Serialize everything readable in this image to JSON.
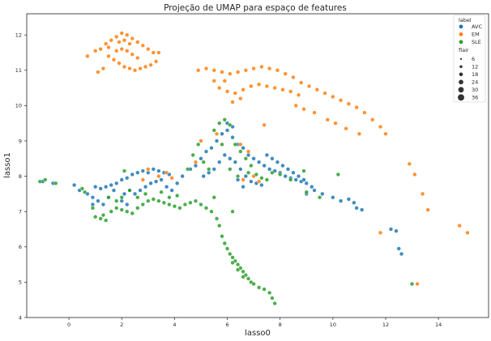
{
  "chart_data": {
    "type": "scatter",
    "title": "Projeção de UMAP para espaço de features",
    "xlabel": "lasso0",
    "ylabel": "lasso1",
    "xlim": [
      -1.6,
      15.9
    ],
    "ylim": [
      4.0,
      12.6
    ],
    "xticks": [
      "0",
      "2",
      "4",
      "6",
      "8",
      "10",
      "12",
      "14"
    ],
    "yticks": [
      "4",
      "5",
      "6",
      "7",
      "8",
      "9",
      "10",
      "11",
      "12"
    ],
    "grid": false,
    "legend_position": "top-right",
    "legend": {
      "hue_title": "label",
      "size_title": "flair",
      "size_values": [
        "6",
        "12",
        "18",
        "24",
        "30",
        "36"
      ]
    },
    "series": [
      {
        "name": "AVC",
        "color": "#1f77b4",
        "points": [
          [
            -1.0,
            7.85
          ],
          [
            -0.6,
            7.8
          ],
          [
            0.2,
            7.75
          ],
          [
            0.4,
            7.6
          ],
          [
            0.7,
            7.5
          ],
          [
            0.9,
            7.4
          ],
          [
            1.0,
            7.7
          ],
          [
            1.2,
            7.65
          ],
          [
            1.4,
            7.7
          ],
          [
            1.1,
            7.3
          ],
          [
            1.3,
            7.2
          ],
          [
            1.5,
            7.4
          ],
          [
            1.6,
            7.75
          ],
          [
            1.8,
            7.8
          ],
          [
            2.0,
            7.9
          ],
          [
            2.2,
            7.95
          ],
          [
            2.4,
            8.05
          ],
          [
            2.6,
            8.1
          ],
          [
            2.8,
            8.15
          ],
          [
            3.0,
            8.1
          ],
          [
            3.2,
            8.2
          ],
          [
            3.4,
            8.15
          ],
          [
            3.6,
            8.1
          ],
          [
            3.8,
            8.05
          ],
          [
            2.3,
            7.6
          ],
          [
            2.5,
            7.5
          ],
          [
            2.7,
            7.6
          ],
          [
            2.9,
            7.7
          ],
          [
            3.1,
            7.8
          ],
          [
            3.3,
            7.85
          ],
          [
            3.5,
            7.9
          ],
          [
            3.7,
            7.7
          ],
          [
            2.1,
            7.5
          ],
          [
            2.0,
            7.3
          ],
          [
            2.2,
            7.2
          ],
          [
            3.9,
            7.6
          ],
          [
            4.1,
            7.8
          ],
          [
            4.3,
            8.0
          ],
          [
            4.6,
            8.2
          ],
          [
            4.8,
            8.3
          ],
          [
            5.0,
            8.5
          ],
          [
            5.2,
            8.7
          ],
          [
            5.4,
            8.8
          ],
          [
            5.6,
            9.0
          ],
          [
            5.8,
            9.2
          ],
          [
            6.0,
            9.3
          ],
          [
            6.2,
            9.1
          ],
          [
            6.4,
            8.9
          ],
          [
            6.6,
            8.8
          ],
          [
            6.8,
            8.6
          ],
          [
            7.0,
            8.5
          ],
          [
            7.2,
            8.4
          ],
          [
            7.4,
            8.3
          ],
          [
            7.6,
            8.2
          ],
          [
            7.8,
            8.15
          ],
          [
            8.0,
            8.1
          ],
          [
            8.2,
            8.0
          ],
          [
            8.4,
            7.95
          ],
          [
            8.6,
            7.9
          ],
          [
            8.8,
            7.85
          ],
          [
            9.0,
            7.8
          ],
          [
            9.2,
            7.7
          ],
          [
            5.9,
            8.6
          ],
          [
            6.1,
            8.5
          ],
          [
            6.3,
            8.4
          ],
          [
            6.5,
            8.2
          ],
          [
            6.7,
            8.0
          ],
          [
            6.9,
            7.85
          ],
          [
            7.1,
            7.8
          ],
          [
            7.3,
            7.75
          ],
          [
            6.2,
            9.4
          ],
          [
            6.0,
            9.5
          ],
          [
            5.7,
            8.4
          ],
          [
            5.5,
            8.2
          ],
          [
            5.3,
            8.1
          ],
          [
            5.1,
            8.0
          ],
          [
            7.5,
            8.6
          ],
          [
            7.7,
            8.5
          ],
          [
            7.9,
            8.4
          ],
          [
            8.1,
            8.3
          ],
          [
            8.3,
            8.2
          ],
          [
            8.5,
            8.1
          ],
          [
            8.7,
            8.0
          ],
          [
            8.9,
            7.9
          ],
          [
            9.3,
            7.6
          ],
          [
            9.6,
            7.5
          ],
          [
            10.0,
            7.4
          ],
          [
            10.3,
            7.3
          ],
          [
            10.6,
            7.35
          ],
          [
            10.8,
            7.25
          ],
          [
            10.9,
            7.1
          ],
          [
            11.1,
            7.05
          ],
          [
            9.0,
            7.5
          ],
          [
            6.4,
            7.9
          ],
          [
            6.6,
            7.7
          ],
          [
            12.2,
            6.5
          ],
          [
            12.4,
            6.45
          ],
          [
            12.5,
            5.95
          ],
          [
            12.6,
            5.8
          ],
          [
            0.9,
            7.2
          ],
          [
            1.7,
            7.6
          ]
        ]
      },
      {
        "name": "EM",
        "color": "#ff7f0e",
        "points": [
          [
            0.7,
            11.4
          ],
          [
            1.0,
            11.55
          ],
          [
            1.2,
            11.6
          ],
          [
            1.4,
            11.75
          ],
          [
            1.6,
            11.85
          ],
          [
            1.8,
            11.95
          ],
          [
            2.0,
            12.05
          ],
          [
            2.2,
            12.0
          ],
          [
            2.4,
            11.9
          ],
          [
            2.6,
            11.8
          ],
          [
            2.8,
            11.7
          ],
          [
            3.0,
            11.6
          ],
          [
            3.2,
            11.5
          ],
          [
            3.4,
            11.5
          ],
          [
            1.5,
            11.4
          ],
          [
            1.7,
            11.3
          ],
          [
            1.9,
            11.2
          ],
          [
            2.1,
            11.1
          ],
          [
            2.3,
            11.05
          ],
          [
            2.5,
            11.0
          ],
          [
            2.7,
            11.05
          ],
          [
            2.9,
            11.1
          ],
          [
            3.1,
            11.15
          ],
          [
            3.3,
            11.25
          ],
          [
            1.3,
            11.05
          ],
          [
            1.1,
            10.95
          ],
          [
            1.8,
            11.55
          ],
          [
            2.0,
            11.6
          ],
          [
            2.2,
            11.55
          ],
          [
            2.4,
            11.45
          ],
          [
            2.6,
            11.35
          ],
          [
            1.9,
            11.8
          ],
          [
            2.1,
            11.85
          ],
          [
            2.3,
            11.75
          ],
          [
            1.5,
            11.65
          ],
          [
            4.9,
            11.0
          ],
          [
            5.2,
            11.05
          ],
          [
            5.5,
            11.0
          ],
          [
            5.8,
            10.95
          ],
          [
            6.1,
            10.9
          ],
          [
            6.4,
            10.95
          ],
          [
            6.7,
            11.0
          ],
          [
            7.0,
            11.05
          ],
          [
            7.3,
            11.1
          ],
          [
            7.6,
            11.05
          ],
          [
            7.9,
            11.0
          ],
          [
            8.2,
            10.9
          ],
          [
            8.5,
            10.8
          ],
          [
            8.8,
            10.65
          ],
          [
            9.1,
            10.55
          ],
          [
            9.4,
            10.45
          ],
          [
            9.7,
            10.35
          ],
          [
            10.0,
            10.25
          ],
          [
            10.3,
            10.15
          ],
          [
            10.6,
            10.05
          ],
          [
            10.9,
            9.95
          ],
          [
            11.2,
            9.8
          ],
          [
            11.5,
            9.6
          ],
          [
            11.8,
            9.4
          ],
          [
            12.0,
            9.2
          ],
          [
            5.7,
            10.5
          ],
          [
            6.0,
            10.4
          ],
          [
            6.3,
            10.35
          ],
          [
            6.6,
            10.45
          ],
          [
            6.9,
            10.55
          ],
          [
            7.2,
            10.6
          ],
          [
            7.5,
            10.55
          ],
          [
            7.8,
            10.5
          ],
          [
            8.1,
            10.45
          ],
          [
            8.4,
            10.4
          ],
          [
            8.7,
            10.3
          ],
          [
            5.5,
            10.7
          ],
          [
            5.9,
            10.7
          ],
          [
            6.2,
            10.1
          ],
          [
            6.5,
            10.2
          ],
          [
            8.6,
            10.0
          ],
          [
            8.9,
            9.9
          ],
          [
            9.3,
            9.8
          ],
          [
            9.8,
            9.6
          ],
          [
            10.1,
            9.5
          ],
          [
            10.5,
            9.35
          ],
          [
            11.0,
            9.2
          ],
          [
            6.5,
            8.9
          ],
          [
            6.8,
            8.7
          ],
          [
            7.0,
            8.0
          ],
          [
            7.2,
            7.85
          ],
          [
            6.6,
            7.9
          ],
          [
            7.4,
            9.45
          ],
          [
            3.0,
            8.2
          ],
          [
            3.4,
            8.0
          ],
          [
            3.7,
            8.1
          ],
          [
            3.9,
            7.95
          ],
          [
            2.8,
            7.9
          ],
          [
            4.8,
            8.4
          ],
          [
            5.0,
            9.0
          ],
          [
            5.6,
            9.2
          ],
          [
            12.9,
            8.35
          ],
          [
            13.1,
            8.05
          ],
          [
            13.4,
            7.5
          ],
          [
            13.6,
            7.05
          ],
          [
            11.8,
            6.4
          ],
          [
            14.8,
            6.6
          ],
          [
            15.1,
            6.4
          ],
          [
            13.2,
            4.95
          ]
        ]
      },
      {
        "name": "SLE",
        "color": "#2ca02c",
        "points": [
          [
            -1.1,
            7.85
          ],
          [
            -0.9,
            7.9
          ],
          [
            -0.5,
            7.8
          ],
          [
            0.5,
            7.65
          ],
          [
            0.6,
            7.55
          ],
          [
            0.9,
            7.1
          ],
          [
            1.0,
            6.85
          ],
          [
            1.2,
            6.8
          ],
          [
            1.4,
            6.75
          ],
          [
            1.3,
            6.9
          ],
          [
            1.6,
            7.0
          ],
          [
            1.8,
            7.1
          ],
          [
            2.0,
            7.05
          ],
          [
            2.2,
            7.0
          ],
          [
            2.4,
            6.95
          ],
          [
            2.6,
            7.1
          ],
          [
            2.8,
            7.2
          ],
          [
            3.0,
            7.3
          ],
          [
            3.2,
            7.35
          ],
          [
            3.4,
            7.3
          ],
          [
            3.6,
            7.25
          ],
          [
            3.8,
            7.2
          ],
          [
            4.0,
            7.15
          ],
          [
            4.2,
            7.1
          ],
          [
            4.4,
            7.2
          ],
          [
            4.6,
            7.25
          ],
          [
            4.8,
            7.3
          ],
          [
            5.0,
            7.2
          ],
          [
            5.2,
            7.1
          ],
          [
            5.4,
            7.0
          ],
          [
            5.6,
            6.8
          ],
          [
            5.7,
            6.6
          ],
          [
            5.8,
            6.3
          ],
          [
            5.9,
            6.1
          ],
          [
            6.0,
            5.95
          ],
          [
            6.1,
            5.8
          ],
          [
            6.2,
            5.7
          ],
          [
            6.3,
            5.6
          ],
          [
            6.4,
            5.5
          ],
          [
            6.5,
            5.4
          ],
          [
            6.6,
            5.3
          ],
          [
            6.7,
            5.2
          ],
          [
            6.8,
            5.1
          ],
          [
            6.9,
            5.0
          ],
          [
            7.0,
            4.95
          ],
          [
            7.2,
            4.85
          ],
          [
            7.4,
            4.8
          ],
          [
            7.6,
            4.7
          ],
          [
            7.7,
            4.55
          ],
          [
            7.8,
            4.4
          ],
          [
            6.2,
            5.55
          ],
          [
            6.4,
            5.35
          ],
          [
            6.6,
            5.15
          ],
          [
            2.0,
            7.4
          ],
          [
            2.3,
            7.6
          ],
          [
            2.6,
            7.4
          ],
          [
            2.9,
            7.5
          ],
          [
            3.5,
            7.55
          ],
          [
            3.8,
            7.4
          ],
          [
            4.1,
            7.45
          ],
          [
            1.8,
            7.3
          ],
          [
            1.5,
            7.4
          ],
          [
            2.1,
            8.15
          ],
          [
            4.5,
            8.2
          ],
          [
            4.7,
            8.6
          ],
          [
            4.9,
            8.9
          ],
          [
            5.1,
            8.4
          ],
          [
            5.3,
            8.2
          ],
          [
            5.5,
            9.3
          ],
          [
            5.7,
            9.5
          ],
          [
            5.9,
            9.6
          ],
          [
            6.1,
            9.45
          ],
          [
            5.8,
            8.9
          ],
          [
            6.3,
            8.9
          ],
          [
            6.5,
            8.7
          ],
          [
            6.7,
            8.5
          ],
          [
            6.9,
            8.3
          ],
          [
            7.1,
            8.05
          ],
          [
            7.3,
            7.95
          ],
          [
            7.5,
            7.9
          ],
          [
            7.7,
            8.1
          ],
          [
            6.8,
            8.1
          ],
          [
            6.4,
            8.0
          ],
          [
            6.1,
            8.2
          ],
          [
            8.0,
            8.05
          ],
          [
            8.4,
            7.9
          ],
          [
            9.0,
            7.55
          ],
          [
            9.5,
            7.4
          ],
          [
            10.2,
            8.05
          ],
          [
            8.9,
            8.15
          ],
          [
            6.2,
            7.0
          ],
          [
            5.5,
            7.4
          ],
          [
            13.0,
            4.95
          ]
        ]
      }
    ]
  }
}
